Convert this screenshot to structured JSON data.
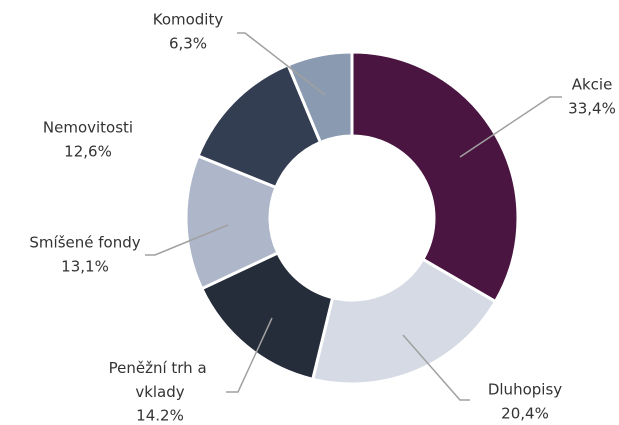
{
  "chart_data": {
    "type": "donut",
    "categories": [
      "Akcie",
      "Dluhopisy",
      "Peněžní trh a vklady",
      "Smíšené fondy",
      "Nemovitosti",
      "Komodity"
    ],
    "values": [
      33.4,
      20.4,
      14.2,
      13.1,
      12.6,
      6.3
    ],
    "value_labels": [
      "33,4%",
      "20,4%",
      "14.2%",
      "13,1%",
      "12,6%",
      "6,3%"
    ],
    "colors": [
      "#4a1540",
      "#d5dae5",
      "#252c3a",
      "#adb7c9",
      "#343e52",
      "#8a9ab0"
    ]
  }
}
